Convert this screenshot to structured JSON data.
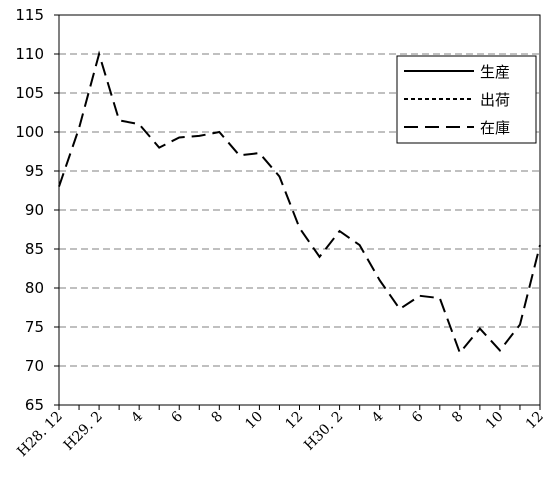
{
  "chart_data": {
    "type": "line",
    "title": "",
    "xlabel": "",
    "ylabel": "",
    "ylim": [
      65,
      115
    ],
    "yticks": [
      "65",
      "70",
      "75",
      "80",
      "85",
      "90",
      "95",
      "100",
      "105",
      "110",
      "115"
    ],
    "grid": "horizontal dashed",
    "legend_position": "top-right",
    "x_tick_labels": [
      {
        "index": 0,
        "label": "H28. 12"
      },
      {
        "index": 2,
        "label": "H29. 2"
      },
      {
        "index": 4,
        "label": "4"
      },
      {
        "index": 6,
        "label": "6"
      },
      {
        "index": 8,
        "label": "8"
      },
      {
        "index": 10,
        "label": "10"
      },
      {
        "index": 12,
        "label": "12"
      },
      {
        "index": 14,
        "label": "H30. 2"
      },
      {
        "index": 16,
        "label": "4"
      },
      {
        "index": 18,
        "label": "6"
      },
      {
        "index": 20,
        "label": "8"
      },
      {
        "index": 22,
        "label": "10"
      },
      {
        "index": 24,
        "label": "12"
      }
    ],
    "series": [
      {
        "name": "生産",
        "style": "solid",
        "values": []
      },
      {
        "name": "出荷",
        "style": "dotted",
        "values": []
      },
      {
        "name": "在庫",
        "style": "dashed",
        "values": [
          93,
          100.5,
          110,
          101.5,
          101,
          98,
          99.3,
          99.5,
          100,
          97,
          97.3,
          94.3,
          87.7,
          84,
          87.3,
          85.5,
          81,
          77.3,
          79,
          78.7,
          71.7,
          74.8,
          72,
          75.3,
          85.5
        ]
      }
    ]
  }
}
